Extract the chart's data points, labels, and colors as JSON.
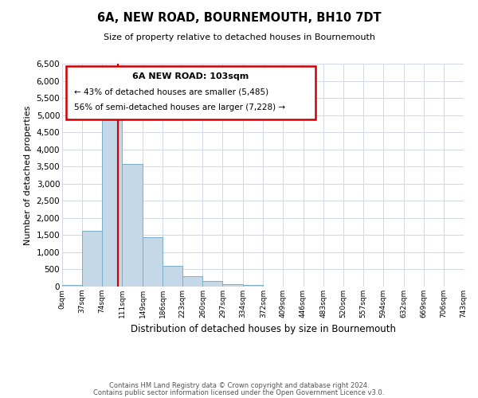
{
  "title": "6A, NEW ROAD, BOURNEMOUTH, BH10 7DT",
  "subtitle": "Size of property relative to detached houses in Bournemouth",
  "xlabel": "Distribution of detached houses by size in Bournemouth",
  "ylabel": "Number of detached properties",
  "bar_values": [
    50,
    1625,
    5080,
    3580,
    1430,
    610,
    300,
    155,
    60,
    50,
    0,
    0,
    0,
    0,
    0,
    0,
    0,
    0,
    0,
    0
  ],
  "bin_edges": [
    0,
    37,
    74,
    111,
    149,
    186,
    223,
    260,
    297,
    334,
    372,
    409,
    446,
    483,
    520,
    557,
    594,
    632,
    669,
    706,
    743
  ],
  "tick_labels": [
    "0sqm",
    "37sqm",
    "74sqm",
    "111sqm",
    "149sqm",
    "186sqm",
    "223sqm",
    "260sqm",
    "297sqm",
    "334sqm",
    "372sqm",
    "409sqm",
    "446sqm",
    "483sqm",
    "520sqm",
    "557sqm",
    "594sqm",
    "632sqm",
    "669sqm",
    "706sqm",
    "743sqm"
  ],
  "ylim": [
    0,
    6500
  ],
  "yticks": [
    0,
    500,
    1000,
    1500,
    2000,
    2500,
    3000,
    3500,
    4000,
    4500,
    5000,
    5500,
    6000,
    6500
  ],
  "bar_color": "#c5d8e8",
  "bar_edge_color": "#7aaec8",
  "vline_x": 103,
  "vline_color": "#cc0000",
  "annotation_title": "6A NEW ROAD: 103sqm",
  "annotation_line1": "← 43% of detached houses are smaller (5,485)",
  "annotation_line2": "56% of semi-detached houses are larger (7,228) →",
  "annotation_box_color": "#cc0000",
  "footer_line1": "Contains HM Land Registry data © Crown copyright and database right 2024.",
  "footer_line2": "Contains public sector information licensed under the Open Government Licence v3.0.",
  "background_color": "#ffffff",
  "grid_color": "#d0d8e8"
}
